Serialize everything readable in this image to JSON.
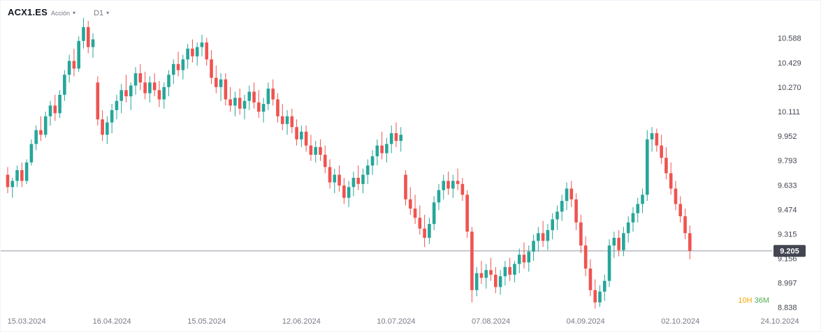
{
  "header": {
    "symbol": "ACX1.ES",
    "instrument_type": "Acción",
    "timeframe": "D1"
  },
  "chart_data": {
    "type": "candlestick",
    "title": "ACX1.ES daily candlestick chart",
    "y_axis": {
      "labels": [
        "10.588",
        "10.429",
        "10.270",
        "10.111",
        "9.952",
        "9.793",
        "9.633",
        "9.474",
        "9.315",
        "9.156",
        "8.997",
        "8.838"
      ],
      "min": 8.8,
      "max": 10.75
    },
    "x_axis": {
      "ticks": [
        {
          "label": "15.03.2024",
          "index": 4
        },
        {
          "label": "16.04.2024",
          "index": 22
        },
        {
          "label": "15.05.2024",
          "index": 42
        },
        {
          "label": "12.06.2024",
          "index": 62
        },
        {
          "label": "10.07.2024",
          "index": 82
        },
        {
          "label": "07.08.2024",
          "index": 102
        },
        {
          "label": "04.09.2024",
          "index": 122
        },
        {
          "label": "02.10.2024",
          "index": 142
        },
        {
          "label": "24.10.2024",
          "index": 163
        }
      ]
    },
    "candles": [
      [
        9.7,
        9.75,
        9.58,
        9.62
      ],
      [
        9.62,
        9.68,
        9.55,
        9.66
      ],
      [
        9.66,
        9.76,
        9.62,
        9.73
      ],
      [
        9.73,
        9.78,
        9.62,
        9.66
      ],
      [
        9.66,
        9.8,
        9.64,
        9.78
      ],
      [
        9.78,
        9.93,
        9.76,
        9.9
      ],
      [
        9.9,
        10.02,
        9.86,
        9.99
      ],
      [
        9.99,
        10.08,
        9.92,
        9.96
      ],
      [
        9.96,
        10.11,
        9.94,
        10.08
      ],
      [
        10.08,
        10.18,
        10.02,
        10.15
      ],
      [
        10.15,
        10.22,
        10.05,
        10.1
      ],
      [
        10.1,
        10.25,
        10.07,
        10.22
      ],
      [
        10.22,
        10.38,
        10.18,
        10.35
      ],
      [
        10.35,
        10.48,
        10.3,
        10.44
      ],
      [
        10.44,
        10.52,
        10.34,
        10.39
      ],
      [
        10.39,
        10.6,
        10.37,
        10.57
      ],
      [
        10.57,
        10.72,
        10.52,
        10.66
      ],
      [
        10.66,
        10.7,
        10.49,
        10.53
      ],
      [
        10.53,
        10.62,
        10.46,
        10.58
      ],
      [
        10.3,
        10.34,
        10.02,
        10.06
      ],
      [
        10.06,
        10.12,
        9.92,
        9.96
      ],
      [
        9.96,
        10.08,
        9.9,
        10.04
      ],
      [
        10.04,
        10.16,
        9.97,
        10.12
      ],
      [
        10.12,
        10.22,
        10.06,
        10.18
      ],
      [
        10.18,
        10.29,
        10.1,
        10.25
      ],
      [
        10.25,
        10.35,
        10.17,
        10.21
      ],
      [
        10.21,
        10.3,
        10.12,
        10.28
      ],
      [
        10.28,
        10.4,
        10.22,
        10.36
      ],
      [
        10.36,
        10.42,
        10.25,
        10.3
      ],
      [
        10.3,
        10.37,
        10.19,
        10.23
      ],
      [
        10.23,
        10.34,
        10.17,
        10.3
      ],
      [
        10.3,
        10.36,
        10.21,
        10.25
      ],
      [
        10.25,
        10.31,
        10.14,
        10.19
      ],
      [
        10.19,
        10.3,
        10.13,
        10.27
      ],
      [
        10.27,
        10.38,
        10.21,
        10.35
      ],
      [
        10.35,
        10.45,
        10.29,
        10.42
      ],
      [
        10.42,
        10.5,
        10.34,
        10.38
      ],
      [
        10.38,
        10.48,
        10.32,
        10.45
      ],
      [
        10.45,
        10.55,
        10.39,
        10.52
      ],
      [
        10.52,
        10.58,
        10.43,
        10.47
      ],
      [
        10.47,
        10.56,
        10.41,
        10.53
      ],
      [
        10.53,
        10.61,
        10.47,
        10.56
      ],
      [
        10.56,
        10.59,
        10.41,
        10.45
      ],
      [
        10.45,
        10.51,
        10.29,
        10.33
      ],
      [
        10.33,
        10.41,
        10.23,
        10.27
      ],
      [
        10.27,
        10.36,
        10.18,
        10.32
      ],
      [
        10.32,
        10.36,
        10.15,
        10.19
      ],
      [
        10.19,
        10.27,
        10.11,
        10.15
      ],
      [
        10.15,
        10.24,
        10.08,
        10.2
      ],
      [
        10.2,
        10.26,
        10.09,
        10.13
      ],
      [
        10.13,
        10.22,
        10.06,
        10.18
      ],
      [
        10.18,
        10.28,
        10.12,
        10.24
      ],
      [
        10.24,
        10.3,
        10.13,
        10.17
      ],
      [
        10.17,
        10.25,
        10.07,
        10.11
      ],
      [
        10.11,
        10.2,
        10.04,
        10.16
      ],
      [
        10.16,
        10.3,
        10.12,
        10.26
      ],
      [
        10.26,
        10.32,
        10.15,
        10.19
      ],
      [
        10.19,
        10.23,
        10.04,
        10.08
      ],
      [
        10.08,
        10.16,
        9.99,
        10.03
      ],
      [
        10.03,
        10.12,
        9.96,
        10.08
      ],
      [
        10.08,
        10.13,
        9.97,
        10.01
      ],
      [
        10.01,
        10.06,
        9.89,
        9.93
      ],
      [
        9.93,
        10.02,
        9.88,
        9.98
      ],
      [
        9.98,
        10.02,
        9.85,
        9.89
      ],
      [
        9.89,
        9.96,
        9.79,
        9.83
      ],
      [
        9.83,
        9.92,
        9.78,
        9.88
      ],
      [
        9.88,
        9.93,
        9.79,
        9.83
      ],
      [
        9.83,
        9.89,
        9.71,
        9.75
      ],
      [
        9.75,
        9.8,
        9.61,
        9.65
      ],
      [
        9.65,
        9.74,
        9.58,
        9.7
      ],
      [
        9.7,
        9.76,
        9.59,
        9.63
      ],
      [
        9.63,
        9.68,
        9.51,
        9.55
      ],
      [
        9.55,
        9.66,
        9.49,
        9.62
      ],
      [
        9.62,
        9.72,
        9.56,
        9.68
      ],
      [
        9.68,
        9.76,
        9.6,
        9.64
      ],
      [
        9.64,
        9.74,
        9.58,
        9.7
      ],
      [
        9.7,
        9.8,
        9.64,
        9.76
      ],
      [
        9.76,
        9.86,
        9.7,
        9.82
      ],
      [
        9.82,
        9.93,
        9.76,
        9.89
      ],
      [
        9.89,
        9.98,
        9.8,
        9.84
      ],
      [
        9.84,
        9.94,
        9.78,
        9.9
      ],
      [
        9.9,
        10.02,
        9.84,
        9.97
      ],
      [
        9.97,
        10.04,
        9.88,
        9.92
      ],
      [
        9.92,
        10.01,
        9.85,
        9.96
      ],
      [
        9.7,
        9.73,
        9.5,
        9.54
      ],
      [
        9.54,
        9.62,
        9.44,
        9.48
      ],
      [
        9.48,
        9.57,
        9.38,
        9.42
      ],
      [
        9.42,
        9.5,
        9.31,
        9.35
      ],
      [
        9.35,
        9.44,
        9.23,
        9.29
      ],
      [
        9.29,
        9.42,
        9.25,
        9.38
      ],
      [
        9.38,
        9.56,
        9.34,
        9.52
      ],
      [
        9.52,
        9.64,
        9.47,
        9.6
      ],
      [
        9.6,
        9.7,
        9.54,
        9.66
      ],
      [
        9.66,
        9.72,
        9.57,
        9.61
      ],
      [
        9.61,
        9.7,
        9.55,
        9.66
      ],
      [
        9.66,
        9.74,
        9.6,
        9.64
      ],
      [
        9.64,
        9.68,
        9.53,
        9.57
      ],
      [
        9.57,
        9.6,
        9.29,
        9.33
      ],
      [
        9.33,
        9.36,
        8.87,
        8.95
      ],
      [
        8.95,
        9.1,
        8.91,
        9.06
      ],
      [
        9.06,
        9.14,
        8.99,
        9.03
      ],
      [
        9.03,
        9.12,
        8.96,
        9.08
      ],
      [
        9.08,
        9.16,
        9.01,
        9.05
      ],
      [
        9.05,
        9.1,
        8.93,
        8.97
      ],
      [
        8.97,
        9.08,
        8.92,
        9.04
      ],
      [
        9.04,
        9.14,
        8.98,
        9.1
      ],
      [
        9.1,
        9.16,
        9.01,
        9.05
      ],
      [
        9.05,
        9.14,
        9.0,
        9.12
      ],
      [
        9.12,
        9.22,
        9.06,
        9.18
      ],
      [
        9.18,
        9.26,
        9.09,
        9.13
      ],
      [
        9.13,
        9.24,
        9.07,
        9.2
      ],
      [
        9.2,
        9.31,
        9.14,
        9.27
      ],
      [
        9.27,
        9.36,
        9.2,
        9.32
      ],
      [
        9.32,
        9.4,
        9.23,
        9.27
      ],
      [
        9.27,
        9.38,
        9.21,
        9.34
      ],
      [
        9.34,
        9.45,
        9.28,
        9.41
      ],
      [
        9.41,
        9.5,
        9.34,
        9.46
      ],
      [
        9.46,
        9.57,
        9.4,
        9.53
      ],
      [
        9.53,
        9.65,
        9.47,
        9.61
      ],
      [
        9.61,
        9.66,
        9.49,
        9.54
      ],
      [
        9.54,
        9.58,
        9.34,
        9.39
      ],
      [
        9.39,
        9.44,
        9.19,
        9.24
      ],
      [
        9.24,
        9.3,
        9.04,
        9.09
      ],
      [
        9.09,
        9.15,
        8.91,
        8.95
      ],
      [
        8.95,
        9.02,
        8.83,
        8.87
      ],
      [
        8.87,
        8.98,
        8.84,
        8.94
      ],
      [
        8.94,
        9.05,
        8.88,
        9.01
      ],
      [
        9.01,
        9.28,
        8.97,
        9.24
      ],
      [
        9.24,
        9.33,
        9.16,
        9.29
      ],
      [
        9.29,
        9.34,
        9.17,
        9.21
      ],
      [
        9.21,
        9.36,
        9.17,
        9.32
      ],
      [
        9.32,
        9.43,
        9.26,
        9.39
      ],
      [
        9.39,
        9.49,
        9.33,
        9.45
      ],
      [
        9.45,
        9.55,
        9.39,
        9.51
      ],
      [
        9.51,
        9.61,
        9.45,
        9.57
      ],
      [
        9.57,
        9.99,
        9.53,
        9.93
      ],
      [
        9.93,
        10.01,
        9.85,
        9.97
      ],
      [
        9.97,
        10.0,
        9.85,
        9.89
      ],
      [
        9.89,
        9.96,
        9.77,
        9.81
      ],
      [
        9.81,
        9.88,
        9.67,
        9.71
      ],
      [
        9.71,
        9.78,
        9.57,
        9.61
      ],
      [
        9.61,
        9.66,
        9.47,
        9.51
      ],
      [
        9.51,
        9.56,
        9.39,
        9.43
      ],
      [
        9.43,
        9.48,
        9.28,
        9.32
      ],
      [
        9.32,
        9.37,
        9.15,
        9.205
      ]
    ],
    "last_price": 9.205,
    "last_price_label": "9.205",
    "countdown": {
      "hours": "10H",
      "minutes": "36M"
    },
    "colors": {
      "up": "#26a69a",
      "down": "#ef5350",
      "axis_text": "#787b86",
      "price_text": "#434651",
      "last_price_line": "#9598a1",
      "badge_bg": "#434651",
      "badge_text": "#ffffff",
      "countdown_hours": "#f7a600",
      "countdown_minutes": "#4caf50"
    }
  }
}
